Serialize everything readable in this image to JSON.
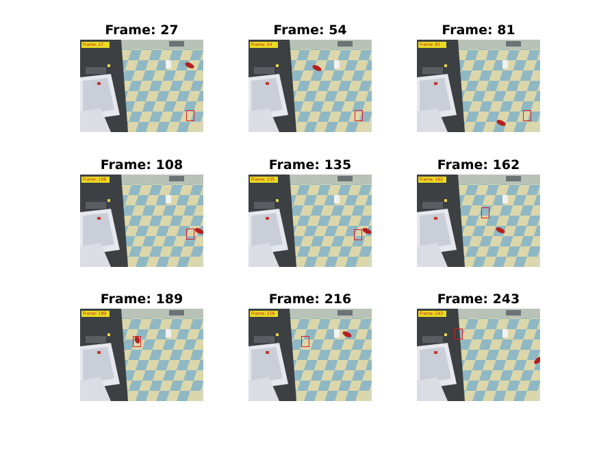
{
  "figure": {
    "panels": [
      {
        "title": "Frame: 27",
        "stamp": "Frame: 27"
      },
      {
        "title": "Frame: 54",
        "stamp": "Frame: 54"
      },
      {
        "title": "Frame: 81",
        "stamp": "Frame: 81"
      },
      {
        "title": "Frame: 108",
        "stamp": "Frame: 108"
      },
      {
        "title": "Frame: 135",
        "stamp": "Frame: 135"
      },
      {
        "title": "Frame: 162",
        "stamp": "Frame: 162"
      },
      {
        "title": "Frame: 189",
        "stamp": "Frame: 189"
      },
      {
        "title": "Frame: 216",
        "stamp": "Frame: 216"
      },
      {
        "title": "Frame: 243",
        "stamp": "Frame: 243"
      }
    ]
  },
  "colors": {
    "tracking_box": "#e0161a",
    "timestamp_bg": "#e8dc23",
    "timestamp_text": "#c8191c"
  }
}
